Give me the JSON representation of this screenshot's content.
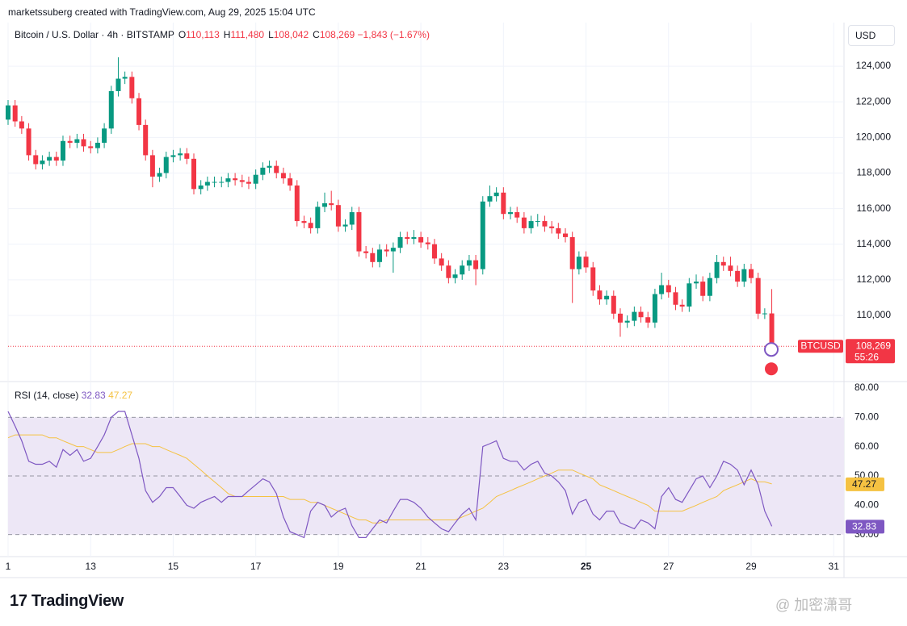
{
  "header": {
    "attribution": "marketssuberg created with TradingView.com, Aug 29, 2025 15:04 UTC",
    "symbol": "Bitcoin / U.S. Dollar · 4h · BITSTAMP",
    "ohlc": [
      {
        "key": "O",
        "text": "110,113"
      },
      {
        "key": "H",
        "text": "111,480"
      },
      {
        "key": "L",
        "text": "108,042"
      },
      {
        "key": "C",
        "text": "108,269"
      }
    ],
    "change": "−1,843 (−1.67%)",
    "currency": "USD"
  },
  "footer": {
    "brand": "TradingView",
    "watermark": "@ 加密潇哥"
  },
  "chart_data": [
    {
      "type": "candlestick",
      "up_color": "#089981",
      "down_color": "#f23645",
      "grid": true,
      "x": [
        11,
        11.17,
        11.33,
        11.5,
        11.67,
        11.83,
        12,
        12.17,
        12.33,
        12.5,
        12.67,
        12.83,
        13,
        13.17,
        13.33,
        13.5,
        13.67,
        13.83,
        14,
        14.17,
        14.33,
        14.5,
        14.67,
        14.83,
        15,
        15.17,
        15.33,
        15.5,
        15.67,
        15.83,
        16,
        16.17,
        16.33,
        16.5,
        16.67,
        16.83,
        17,
        17.17,
        17.33,
        17.5,
        17.67,
        17.83,
        18,
        18.17,
        18.33,
        18.5,
        18.67,
        18.83,
        19,
        19.17,
        19.33,
        19.5,
        19.67,
        19.83,
        20,
        20.17,
        20.33,
        20.5,
        20.67,
        20.83,
        21,
        21.17,
        21.33,
        21.5,
        21.67,
        21.83,
        22,
        22.17,
        22.33,
        22.5,
        22.67,
        22.83,
        23,
        23.17,
        23.33,
        23.5,
        23.67,
        23.83,
        24,
        24.17,
        24.33,
        24.5,
        24.67,
        24.83,
        25,
        25.17,
        25.33,
        25.5,
        25.67,
        25.83,
        26,
        26.17,
        26.33,
        26.5,
        26.67,
        26.83,
        27,
        27.17,
        27.33,
        27.5,
        27.67,
        27.83,
        28,
        28.17,
        28.33,
        28.5,
        28.67,
        28.83,
        29,
        29.17,
        29.33,
        29.5
      ],
      "open": [
        121000,
        121800,
        120900,
        120500,
        119000,
        118500,
        118700,
        118900,
        118700,
        119800,
        119700,
        119900,
        119500,
        119400,
        119700,
        120500,
        122600,
        123300,
        123400,
        122200,
        120700,
        119000,
        117800,
        118000,
        118900,
        119000,
        119100,
        118800,
        117100,
        117300,
        117500,
        117500,
        117500,
        117700,
        117600,
        117500,
        117400,
        117900,
        118300,
        118400,
        118000,
        117700,
        117300,
        115300,
        115200,
        114900,
        116100,
        116300,
        116200,
        115000,
        115100,
        115800,
        113600,
        113500,
        113000,
        113700,
        113600,
        113800,
        114400,
        114300,
        114400,
        114100,
        114000,
        113200,
        112800,
        112100,
        112300,
        112800,
        113100,
        112600,
        116400,
        116700,
        116900,
        115700,
        115800,
        115500,
        114900,
        115300,
        115300,
        115000,
        114900,
        114600,
        114400,
        112600,
        113300,
        112700,
        111400,
        110900,
        111100,
        110100,
        109600,
        109700,
        110200,
        109900,
        109600,
        111200,
        111700,
        111300,
        110600,
        110500,
        111800,
        111900,
        111100,
        112100,
        113000,
        112800,
        112500,
        111900,
        112600,
        112100,
        110100,
        110113
      ],
      "high": [
        122100,
        122100,
        121200,
        120800,
        119300,
        119000,
        119200,
        119200,
        120100,
        120100,
        120200,
        120200,
        119800,
        120000,
        120800,
        122900,
        124500,
        123700,
        123700,
        122500,
        121000,
        119300,
        118300,
        119200,
        119300,
        119400,
        119400,
        119100,
        117600,
        117800,
        117800,
        117800,
        118000,
        118000,
        117900,
        117800,
        118200,
        118600,
        118700,
        118700,
        118300,
        118000,
        117600,
        115600,
        115500,
        116400,
        116900,
        117000,
        116500,
        115400,
        116100,
        116100,
        113900,
        113800,
        114000,
        114000,
        114100,
        114700,
        114700,
        114800,
        114700,
        114400,
        114300,
        113500,
        113100,
        112600,
        113100,
        113400,
        113400,
        116700,
        117300,
        117200,
        117200,
        116100,
        116100,
        115800,
        115600,
        115700,
        115600,
        115300,
        115200,
        114900,
        114700,
        113600,
        113600,
        113000,
        111700,
        111400,
        111400,
        110400,
        110000,
        110500,
        110500,
        110200,
        111500,
        112400,
        112000,
        111600,
        110900,
        112100,
        112300,
        112200,
        112400,
        113400,
        113300,
        113300,
        112800,
        112900,
        112900,
        112400,
        110400,
        111480
      ],
      "low": [
        120700,
        120600,
        120200,
        118700,
        118200,
        118200,
        118400,
        118400,
        118400,
        119400,
        119400,
        119200,
        119100,
        119100,
        119400,
        120200,
        122300,
        123000,
        121900,
        120400,
        118700,
        117200,
        117500,
        117700,
        118600,
        118700,
        118500,
        116800,
        116800,
        117000,
        117200,
        117200,
        117200,
        117300,
        117200,
        117100,
        117100,
        117600,
        118000,
        117700,
        117400,
        117000,
        115000,
        114900,
        114600,
        114600,
        115800,
        115900,
        114700,
        114700,
        114800,
        113300,
        113200,
        112700,
        112700,
        113300,
        112400,
        113500,
        114000,
        114000,
        113800,
        113700,
        112900,
        112500,
        111800,
        111800,
        112000,
        112500,
        111700,
        112300,
        116100,
        116400,
        115400,
        115400,
        115200,
        114600,
        114600,
        115000,
        114700,
        114600,
        114300,
        114100,
        110700,
        112300,
        112400,
        111100,
        110600,
        110600,
        109800,
        108800,
        109300,
        109400,
        109600,
        109300,
        109300,
        110900,
        111000,
        110300,
        110200,
        110200,
        111500,
        110800,
        110800,
        111800,
        112500,
        112200,
        111600,
        111600,
        111800,
        109800,
        109800,
        108042
      ],
      "close": [
        121800,
        120900,
        120500,
        119000,
        118500,
        118700,
        118900,
        118700,
        119800,
        119700,
        119900,
        119500,
        119400,
        119700,
        120500,
        122600,
        123300,
        123400,
        122200,
        120700,
        119000,
        117800,
        118000,
        118900,
        119000,
        119100,
        118800,
        117100,
        117300,
        117500,
        117500,
        117500,
        117700,
        117600,
        117500,
        117400,
        117900,
        118300,
        118400,
        118000,
        117700,
        117300,
        115300,
        115200,
        114900,
        116100,
        116300,
        116200,
        115000,
        115100,
        115800,
        113600,
        113500,
        113000,
        113700,
        113600,
        113800,
        114400,
        114300,
        114400,
        114100,
        114000,
        113200,
        112800,
        112100,
        112300,
        112800,
        113100,
        112600,
        116400,
        116700,
        116900,
        115700,
        115800,
        115500,
        114900,
        115300,
        115300,
        115000,
        114900,
        114600,
        114400,
        112600,
        113300,
        112700,
        111400,
        110900,
        111100,
        110100,
        109600,
        109700,
        110200,
        109900,
        109600,
        111200,
        111700,
        111300,
        110600,
        110500,
        111800,
        111900,
        111100,
        112100,
        113000,
        112800,
        112500,
        111900,
        112600,
        112100,
        110100,
        110113,
        108269
      ],
      "last_label": "108,269",
      "symbol_tag": "BTCUSD",
      "countdown": "55:26",
      "xlim": [
        11,
        31.25
      ],
      "xticks": [
        {
          "value": 11,
          "label": "1"
        },
        13,
        15,
        17,
        19,
        21,
        23,
        25,
        27,
        29,
        31
      ],
      "ylim": [
        106330,
        126360
      ],
      "yticks": [
        {
          "value": 110000,
          "label": "110,000"
        },
        {
          "value": 112000,
          "label": "112,000"
        },
        {
          "value": 114000,
          "label": "114,000"
        },
        {
          "value": 116000,
          "label": "116,000"
        },
        {
          "value": 118000,
          "label": "118,000"
        },
        {
          "value": 120000,
          "label": "120,000"
        },
        {
          "value": 122000,
          "label": "122,000"
        },
        {
          "value": 124000,
          "label": "124,000"
        }
      ]
    },
    {
      "type": "line",
      "title": "RSI (14, close)",
      "ylim": [
        22.5,
        81.9
      ],
      "yticks": [
        {
          "value": 30,
          "label": "30.00"
        },
        {
          "value": 40,
          "label": "40.00"
        },
        {
          "value": 50,
          "label": "50.00"
        },
        {
          "value": 60,
          "label": "60.00"
        },
        {
          "value": 70,
          "label": "70.00"
        },
        {
          "value": 80,
          "label": "80.00"
        }
      ],
      "upper_band": 70,
      "middle_band": 50,
      "lower_band": 30,
      "band_color": "#ede7f6",
      "series": [
        {
          "color": "#7e57c2",
          "last_label": "32.83",
          "values": [
            72,
            67,
            62,
            55,
            54,
            54,
            55,
            53,
            59,
            57,
            59,
            55,
            56,
            60,
            64,
            70,
            72,
            72,
            64,
            56,
            45,
            41,
            43,
            46,
            46,
            43,
            40,
            39,
            41,
            42,
            43,
            41,
            43,
            43,
            43,
            45,
            47,
            49,
            48,
            44,
            36,
            31,
            30,
            29,
            38,
            41,
            40,
            36,
            38,
            39,
            33,
            29,
            29,
            32,
            35,
            34,
            38,
            42,
            42,
            41,
            39,
            36,
            34,
            32,
            31,
            34,
            37,
            39,
            35,
            60,
            61,
            62,
            56,
            55,
            55,
            52,
            54,
            55,
            51,
            50,
            48,
            45,
            37,
            41,
            42,
            37,
            35,
            38,
            38,
            34,
            33,
            32,
            35,
            34,
            32,
            43,
            46,
            42,
            41,
            45,
            49,
            50,
            46,
            50,
            55,
            54,
            52,
            47,
            52,
            47,
            38,
            32.83
          ]
        },
        {
          "color": "#f5c242",
          "last_label": "47.27",
          "values": [
            63,
            64,
            64,
            64,
            64,
            64,
            63,
            63,
            62,
            61,
            60,
            60,
            59,
            58,
            58,
            58,
            59,
            60,
            61,
            61,
            61,
            60,
            60,
            59,
            58,
            57,
            56,
            54,
            52,
            50,
            48,
            46,
            44,
            43,
            43,
            43,
            43,
            43,
            43,
            43,
            43,
            42,
            42,
            42,
            41,
            41,
            40,
            39,
            38,
            37,
            36,
            35,
            35,
            34,
            34,
            35,
            35,
            35,
            35,
            35,
            35,
            35,
            35,
            35,
            35,
            35,
            36,
            37,
            38,
            39,
            41,
            43,
            44,
            45,
            46,
            47,
            48,
            49,
            50,
            51,
            52,
            52,
            52,
            51,
            50,
            49,
            47,
            46,
            45,
            44,
            43,
            42,
            41,
            40,
            38,
            38,
            38,
            38,
            38,
            39,
            40,
            41,
            42,
            43,
            45,
            46,
            47,
            48,
            49,
            48,
            48,
            47.27
          ]
        }
      ]
    }
  ]
}
